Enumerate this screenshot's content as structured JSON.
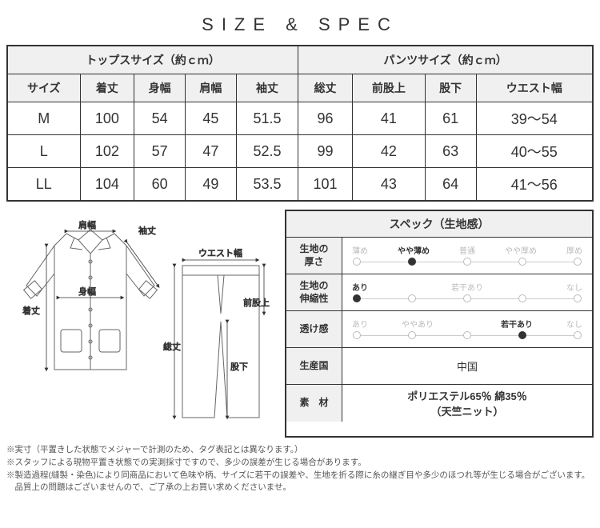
{
  "title": "SIZE & SPEC",
  "size_table": {
    "tops_header": "トップスサイズ（約ｃｍ）",
    "pants_header": "パンツサイズ（約ｃｍ）",
    "columns": {
      "size": "サイズ",
      "kitake": "着丈",
      "mihaba": "身幅",
      "katahaba": "肩幅",
      "sodetake": "袖丈",
      "soutake": "総丈",
      "maemataue": "前股上",
      "matashita": "股下",
      "waist": "ウエスト幅"
    },
    "rows": [
      {
        "size": "M",
        "kitake": "100",
        "mihaba": "54",
        "katahaba": "45",
        "sodetake": "51.5",
        "soutake": "96",
        "maemataue": "41",
        "matashita": "61",
        "waist": "39～54"
      },
      {
        "size": "L",
        "kitake": "102",
        "mihaba": "57",
        "katahaba": "47",
        "sodetake": "52.5",
        "soutake": "99",
        "maemataue": "42",
        "matashita": "63",
        "waist": "40～55"
      },
      {
        "size": "LL",
        "kitake": "104",
        "mihaba": "60",
        "katahaba": "49",
        "sodetake": "53.5",
        "soutake": "101",
        "maemataue": "43",
        "matashita": "64",
        "waist": "41～56"
      }
    ]
  },
  "diagram_labels": {
    "sodetake": "袖丈",
    "katahaba": "肩幅",
    "mihaba": "身幅",
    "kitake": "着丈",
    "waist": "ウエスト幅",
    "maemataue": "前股上",
    "matashita": "股下",
    "soutake": "総丈"
  },
  "spec": {
    "title": "スペック（生地感）",
    "thickness": {
      "label": "生地の\n厚さ",
      "options": [
        "薄め",
        "やや薄め",
        "普通",
        "やや厚め",
        "厚め"
      ],
      "active_index": 1
    },
    "stretch": {
      "label": "生地の\n伸縮性",
      "options": [
        "あり",
        "",
        "若干あり",
        "",
        "なし"
      ],
      "active_index": 0
    },
    "sheer": {
      "label": "透け感",
      "options": [
        "あり",
        "ややあり",
        "",
        "若干あり",
        "なし"
      ],
      "active_index": 3
    },
    "country": {
      "label": "生産国",
      "value": "中国"
    },
    "material": {
      "label": "素　材",
      "value": "ポリエステル65％ 綿35％\n（天竺ニット）"
    }
  },
  "notes": [
    "※実寸（平置きした状態でメジャーで計測のため、タグ表記とは異なります。）",
    "※スタッフによる現物平置き状態での実測採寸ですので、多少の誤差が生じる場合があります。",
    "※製造過程(縫製・染色)により同商品において色味や柄、サイズに若干の誤差や、生地を折る際に糸の継ぎ目や多少のほつれ等が生じる場合がございます。品質上の問題はございませんので、ご了承の上お買い求めくださいませ。"
  ],
  "colors": {
    "border": "#333333",
    "header_bg": "#f0f0f0",
    "muted": "#bbbbbb"
  }
}
